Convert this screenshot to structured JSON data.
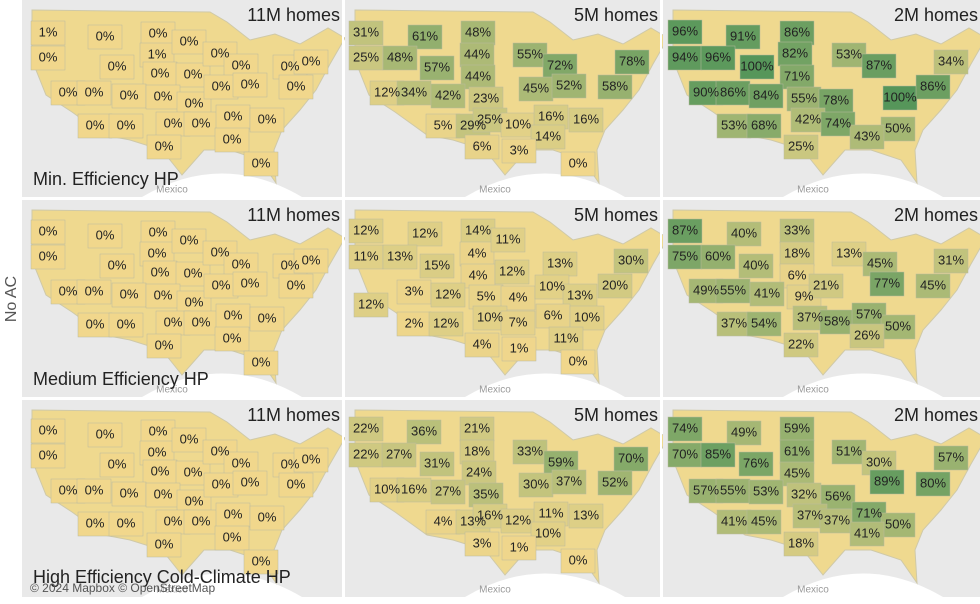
{
  "side_label": "No AC",
  "map_label": "Mexico",
  "attribution": "© 2024 Mapbox © OpenStreetMap",
  "rows": [
    {
      "title": "Min. Efficiency HP",
      "panels": [
        {
          "header": "11M homes",
          "labels": [
            "1%",
            "0%",
            "0%",
            "0%",
            "1%",
            "0%",
            "0%",
            "0%",
            "0%",
            "0%",
            "0%",
            "0%",
            "0%",
            "0%",
            "0%",
            "0%",
            "0%",
            "0%",
            "0%",
            "0%",
            "0%",
            "0%",
            "0%",
            "0%",
            "0%",
            "0%",
            "0%",
            "0%",
            "0%",
            "0%"
          ]
        },
        {
          "header": "5M homes",
          "labels": [
            "31%",
            "61%",
            "48%",
            "25%",
            "48%",
            "57%",
            "44%",
            "55%",
            "72%",
            "78%",
            "44%",
            "12%",
            "34%",
            "42%",
            "23%",
            "45%",
            "52%",
            "58%",
            "5%",
            "29%",
            "25%",
            "10%",
            "16%",
            "16%",
            "14%",
            "6%",
            "3%",
            "0%"
          ]
        },
        {
          "header": "2M homes",
          "labels": [
            "96%",
            "91%",
            "86%",
            "94%",
            "96%",
            "100%",
            "82%",
            "53%",
            "87%",
            "34%",
            "71%",
            "90%",
            "86%",
            "84%",
            "55%",
            "78%",
            "100%",
            "86%",
            "53%",
            "68%",
            "42%",
            "74%",
            "50%",
            "43%",
            "25%"
          ]
        }
      ]
    },
    {
      "title": "Medium Efficiency HP",
      "panels": [
        {
          "header": "11M homes",
          "labels": [
            "0%",
            "0%",
            "0%",
            "0%",
            "0%",
            "0%",
            "0%",
            "0%",
            "0%",
            "0%",
            "0%",
            "0%",
            "0%",
            "0%",
            "0%",
            "0%",
            "0%",
            "0%",
            "0%",
            "0%",
            "0%",
            "0%",
            "0%",
            "0%",
            "0%",
            "0%",
            "0%",
            "0%",
            "0%",
            "0%"
          ]
        },
        {
          "header": "5M homes",
          "labels": [
            "12%",
            "12%",
            "14%",
            "11%",
            "13%",
            "15%",
            "4%",
            "11%",
            "13%",
            "30%",
            "4%",
            "12%",
            "12%",
            "3%",
            "12%",
            "5%",
            "4%",
            "10%",
            "13%",
            "20%",
            "2%",
            "12%",
            "10%",
            "7%",
            "6%",
            "10%",
            "11%",
            "4%",
            "1%",
            "0%"
          ]
        },
        {
          "header": "2M homes",
          "labels": [
            "87%",
            "40%",
            "33%",
            "75%",
            "60%",
            "40%",
            "18%",
            "13%",
            "45%",
            "31%",
            "6%",
            "9%",
            "49%",
            "55%",
            "41%",
            "21%",
            "77%",
            "45%",
            "37%",
            "54%",
            "37%",
            "58%",
            "57%",
            "50%",
            "26%",
            "22%"
          ]
        }
      ]
    },
    {
      "title": "High Efficiency Cold-Climate HP",
      "panels": [
        {
          "header": "11M homes",
          "labels": [
            "0%",
            "0%",
            "0%",
            "0%",
            "0%",
            "0%",
            "0%",
            "0%",
            "0%",
            "0%",
            "0%",
            "0%",
            "0%",
            "0%",
            "0%",
            "0%",
            "0%",
            "0%",
            "0%",
            "0%",
            "0%",
            "0%",
            "0%",
            "0%",
            "0%",
            "0%",
            "0%",
            "0%",
            "0%",
            "0%"
          ]
        },
        {
          "header": "5M homes",
          "labels": [
            "22%",
            "36%",
            "21%",
            "22%",
            "27%",
            "31%",
            "18%",
            "33%",
            "59%",
            "70%",
            "24%",
            "10%",
            "16%",
            "27%",
            "35%",
            "30%",
            "37%",
            "52%",
            "4%",
            "13%",
            "16%",
            "12%",
            "11%",
            "13%",
            "10%",
            "3%",
            "1%",
            "0%"
          ]
        },
        {
          "header": "2M homes",
          "labels": [
            "74%",
            "49%",
            "59%",
            "70%",
            "85%",
            "76%",
            "61%",
            "51%",
            "30%",
            "57%",
            "45%",
            "57%",
            "55%",
            "53%",
            "32%",
            "56%",
            "89%",
            "80%",
            "41%",
            "45%",
            "37%",
            "37%",
            "71%",
            "50%",
            "41%",
            "18%"
          ]
        }
      ]
    }
  ]
}
